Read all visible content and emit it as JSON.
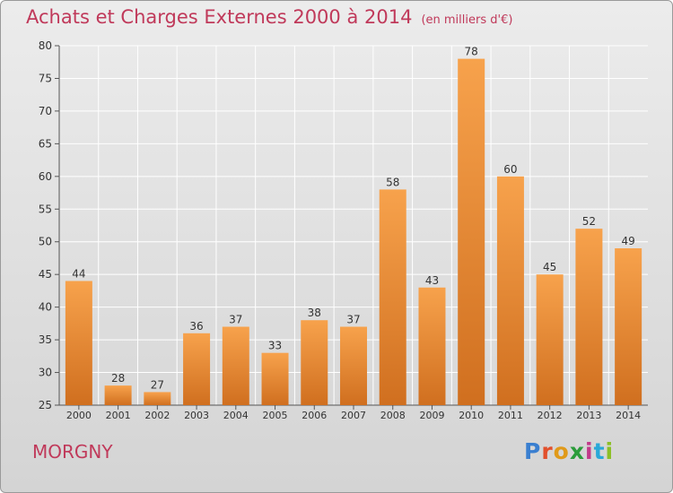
{
  "header": {
    "title": "Achats et Charges Externes 2000 à 2014",
    "subtitle": "(en milliers d'€)"
  },
  "footer": {
    "commune": "MORGNY",
    "logo_text": "Proxiti",
    "logo_colors": [
      "#3a7fd0",
      "#e2502c",
      "#e09a1a",
      "#2a9c3a",
      "#c23a8a",
      "#2aa8d8",
      "#8cbf26"
    ]
  },
  "colors": {
    "bar_top": "#f7a24c",
    "bar_bottom": "#d06f1f",
    "accent": "#c0395a",
    "grid": "#ffffff"
  },
  "chart_data": {
    "type": "bar",
    "title": "Achats et Charges Externes 2000 à 2014",
    "subtitle": "(en milliers d'€)",
    "categories": [
      "2000",
      "2001",
      "2002",
      "2003",
      "2004",
      "2005",
      "2006",
      "2007",
      "2008",
      "2009",
      "2010",
      "2011",
      "2012",
      "2013",
      "2014"
    ],
    "values": [
      44,
      28,
      27,
      36,
      37,
      33,
      38,
      37,
      58,
      43,
      78,
      60,
      45,
      52,
      49
    ],
    "ylim": [
      25,
      80
    ],
    "yticks": [
      25,
      30,
      35,
      40,
      45,
      50,
      55,
      60,
      65,
      70,
      75,
      80
    ],
    "grid": true,
    "data_labels": true
  }
}
